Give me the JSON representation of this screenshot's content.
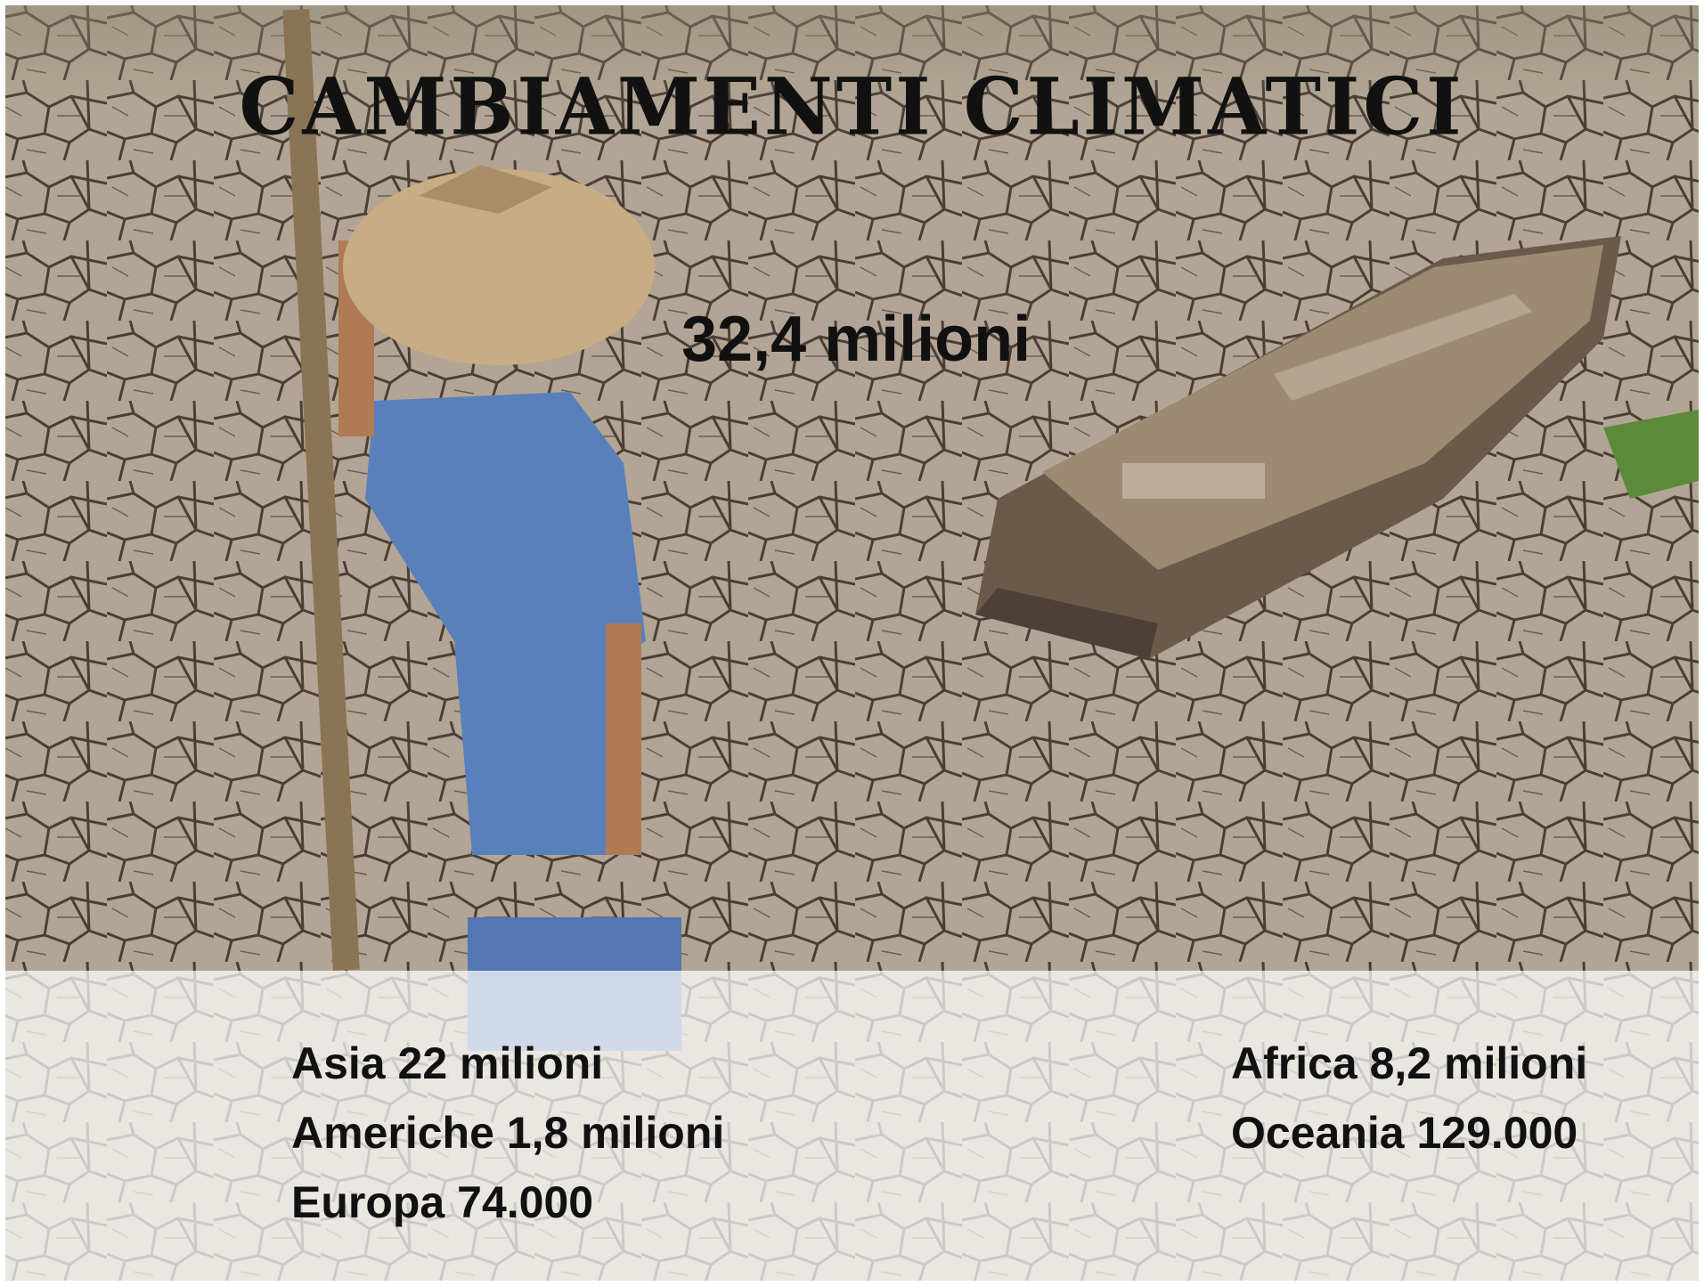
{
  "title": "CAMBIAMENTI CLIMATICI",
  "total": "32,4 milioni",
  "regions": {
    "left": [
      "Asia 22 milioni",
      "Americhe 1,8 milioni",
      "Europa 74.000"
    ],
    "right": [
      "Africa 8,2 milioni",
      "Oceania 129.000"
    ]
  }
}
